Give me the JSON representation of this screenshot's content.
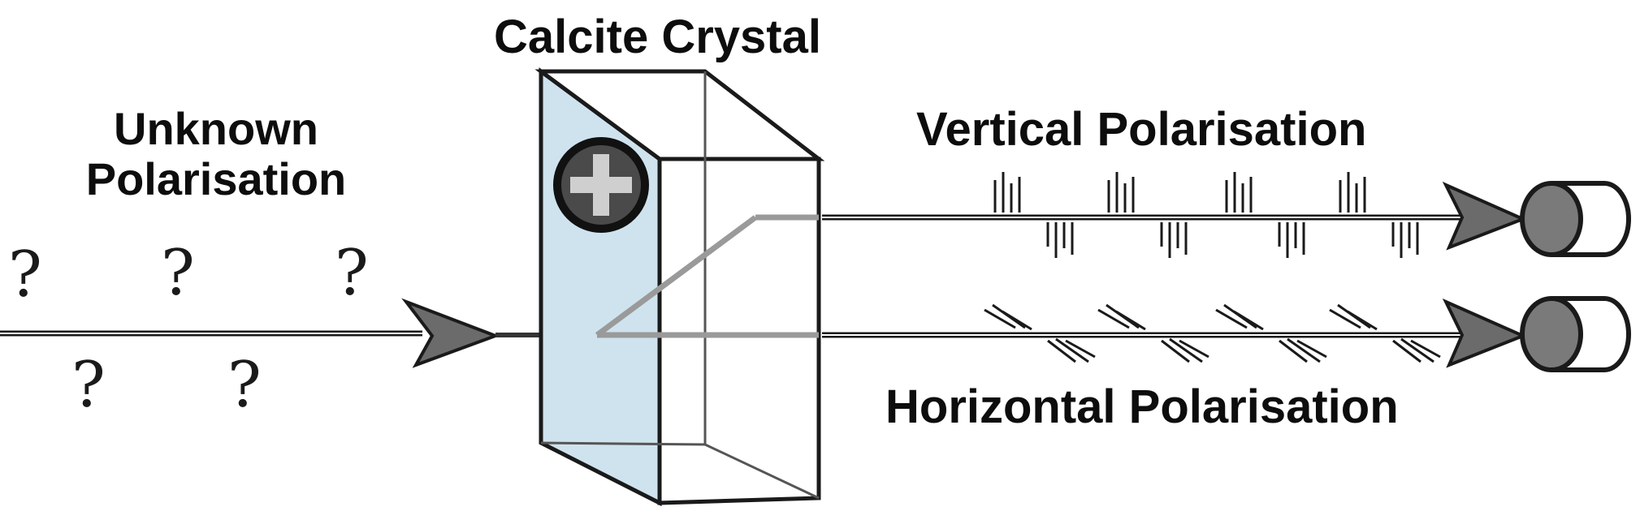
{
  "labels": {
    "crystal": "Calcite Crystal",
    "unknown_line1": "Unknown",
    "unknown_line2": "Polarisation",
    "vertical": "Vertical Polarisation",
    "horizontal": "Horizontal Polarisation"
  },
  "question_mark": "?",
  "icons": {
    "add": "plus-circle-icon",
    "detector_top": "detector-icon",
    "detector_bottom": "detector-icon"
  },
  "colors": {
    "crystal_face": "#cfe3ee",
    "beam": "#1a1a1a",
    "icon_ring": "#111111",
    "icon_fill": "#4a4a4a",
    "icon_cross": "#cfcfcf",
    "detector_fill": "#7a7a7a"
  }
}
